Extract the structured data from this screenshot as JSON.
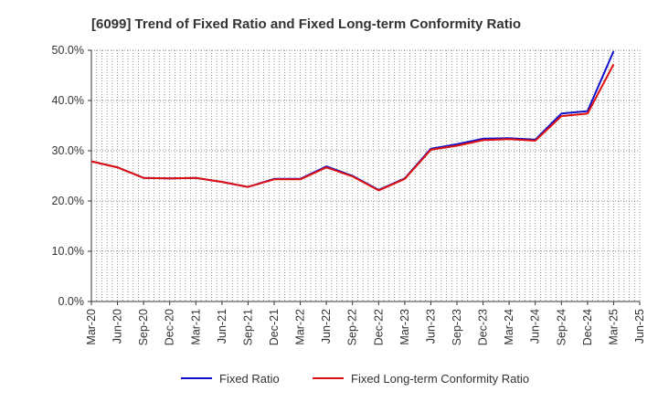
{
  "chart_data": {
    "type": "line",
    "title": "[6099]  Trend of Fixed Ratio and Fixed Long-term Conformity Ratio",
    "xlabel": "",
    "ylabel": "",
    "categories": [
      "Mar-20",
      "Jun-20",
      "Sep-20",
      "Dec-20",
      "Mar-21",
      "Jun-21",
      "Sep-21",
      "Dec-21",
      "Mar-22",
      "Jun-22",
      "Sep-22",
      "Dec-22",
      "Mar-23",
      "Jun-23",
      "Sep-23",
      "Dec-23",
      "Mar-24",
      "Jun-24",
      "Sep-24",
      "Dec-24",
      "Mar-25",
      "Jun-25"
    ],
    "y_ticks": [
      "0.0%",
      "10.0%",
      "20.0%",
      "30.0%",
      "40.0%",
      "50.0%"
    ],
    "ylim": [
      0,
      50
    ],
    "grid": true,
    "legend_position": "bottom",
    "series": [
      {
        "name": "Fixed Ratio",
        "color": "#1010cc",
        "values": [
          27.9,
          26.7,
          24.6,
          24.5,
          24.6,
          23.8,
          22.8,
          24.4,
          24.4,
          26.9,
          25.0,
          22.2,
          24.5,
          30.4,
          31.3,
          32.4,
          32.5,
          32.2,
          37.4,
          37.9,
          49.8,
          null
        ]
      },
      {
        "name": "Fixed Long-term Conformity Ratio",
        "color": "#e01010",
        "values": [
          27.9,
          26.7,
          24.6,
          24.5,
          24.6,
          23.8,
          22.8,
          24.3,
          24.3,
          26.7,
          24.9,
          22.1,
          24.4,
          30.2,
          31.0,
          32.1,
          32.3,
          32.0,
          36.9,
          37.4,
          47.2,
          null
        ]
      }
    ]
  }
}
